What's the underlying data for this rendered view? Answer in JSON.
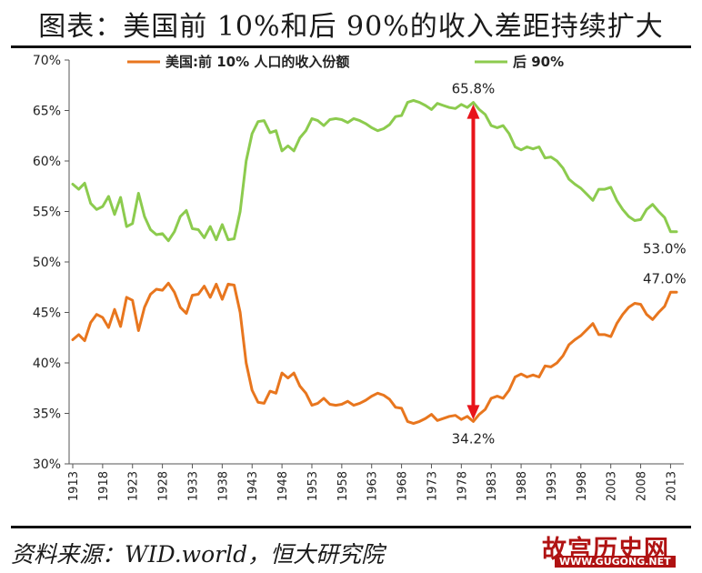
{
  "title": "图表：美国前 10%和后 90%的收入差距持续扩大",
  "source": "资料来源：WID.world，恒大研究院",
  "watermark": {
    "main": "故宫历史网",
    "url": "WWW.GUGONG.NET"
  },
  "colors": {
    "top10": "#E8761E",
    "bottom90": "#8CCB4E",
    "arrow": "#E8141B"
  },
  "chart_data": {
    "type": "line",
    "ylim": [
      30,
      70
    ],
    "xlim": [
      1913,
      2014
    ],
    "yticks": [
      "30%",
      "35%",
      "40%",
      "45%",
      "50%",
      "55%",
      "60%",
      "65%",
      "70%"
    ],
    "xticks": [
      "1913",
      "1918",
      "1923",
      "1928",
      "1933",
      "1938",
      "1943",
      "1948",
      "1953",
      "1958",
      "1963",
      "1968",
      "1973",
      "1978",
      "1983",
      "1988",
      "1993",
      "1998",
      "2003",
      "2008",
      "2013"
    ],
    "grid": false,
    "legend": "top",
    "series": [
      {
        "name": "美国:前 10% 人口的收入份额",
        "x": [
          1913,
          1914,
          1915,
          1916,
          1917,
          1918,
          1919,
          1920,
          1921,
          1922,
          1923,
          1924,
          1925,
          1926,
          1927,
          1928,
          1929,
          1930,
          1931,
          1932,
          1933,
          1934,
          1935,
          1936,
          1937,
          1938,
          1939,
          1940,
          1941,
          1942,
          1943,
          1944,
          1945,
          1946,
          1947,
          1948,
          1949,
          1950,
          1951,
          1952,
          1953,
          1954,
          1955,
          1956,
          1957,
          1958,
          1959,
          1960,
          1961,
          1962,
          1963,
          1964,
          1965,
          1966,
          1967,
          1968,
          1969,
          1970,
          1971,
          1972,
          1973,
          1974,
          1975,
          1976,
          1977,
          1978,
          1979,
          1980,
          1981,
          1982,
          1983,
          1984,
          1985,
          1986,
          1987,
          1988,
          1989,
          1990,
          1991,
          1992,
          1993,
          1994,
          1995,
          1996,
          1997,
          1998,
          1999,
          2000,
          2001,
          2002,
          2003,
          2004,
          2005,
          2006,
          2007,
          2008,
          2009,
          2010,
          2011,
          2012,
          2013,
          2014
        ],
        "values": [
          42.3,
          42.8,
          42.2,
          44.0,
          44.8,
          44.5,
          43.5,
          45.3,
          43.6,
          46.5,
          46.2,
          43.2,
          45.5,
          46.8,
          47.3,
          47.2,
          47.9,
          47.0,
          45.5,
          44.9,
          46.7,
          46.8,
          47.6,
          46.5,
          47.8,
          46.3,
          47.8,
          47.7,
          45.0,
          40.0,
          37.3,
          36.1,
          36.0,
          37.2,
          37.0,
          39.0,
          38.5,
          39.0,
          37.7,
          37.0,
          35.8,
          36.0,
          36.5,
          35.9,
          35.8,
          35.9,
          36.2,
          35.8,
          36.0,
          36.3,
          36.7,
          37.0,
          36.8,
          36.4,
          35.6,
          35.5,
          34.2,
          34.0,
          34.2,
          34.5,
          34.9,
          34.3,
          34.5,
          34.7,
          34.8,
          34.4,
          34.7,
          34.2,
          34.9,
          35.4,
          36.5,
          36.7,
          36.5,
          37.3,
          38.6,
          38.9,
          38.6,
          38.8,
          38.6,
          39.7,
          39.6,
          40.0,
          40.7,
          41.8,
          42.3,
          42.7,
          43.3,
          43.9,
          42.8,
          42.8,
          42.6,
          43.9,
          44.8,
          45.5,
          45.9,
          45.8,
          44.8,
          44.3,
          45.0,
          45.6,
          47.0,
          47.0
        ]
      },
      {
        "name": "后 90%",
        "x": [
          1913,
          1914,
          1915,
          1916,
          1917,
          1918,
          1919,
          1920,
          1921,
          1922,
          1923,
          1924,
          1925,
          1926,
          1927,
          1928,
          1929,
          1930,
          1931,
          1932,
          1933,
          1934,
          1935,
          1936,
          1937,
          1938,
          1939,
          1940,
          1941,
          1942,
          1943,
          1944,
          1945,
          1946,
          1947,
          1948,
          1949,
          1950,
          1951,
          1952,
          1953,
          1954,
          1955,
          1956,
          1957,
          1958,
          1959,
          1960,
          1961,
          1962,
          1963,
          1964,
          1965,
          1966,
          1967,
          1968,
          1969,
          1970,
          1971,
          1972,
          1973,
          1974,
          1975,
          1976,
          1977,
          1978,
          1979,
          1980,
          1981,
          1982,
          1983,
          1984,
          1985,
          1986,
          1987,
          1988,
          1989,
          1990,
          1991,
          1992,
          1993,
          1994,
          1995,
          1996,
          1997,
          1998,
          1999,
          2000,
          2001,
          2002,
          2003,
          2004,
          2005,
          2006,
          2007,
          2008,
          2009,
          2010,
          2011,
          2012,
          2013,
          2014
        ],
        "values": [
          57.7,
          57.2,
          57.8,
          55.8,
          55.2,
          55.5,
          56.5,
          54.7,
          56.4,
          53.5,
          53.8,
          56.8,
          54.5,
          53.2,
          52.7,
          52.8,
          52.1,
          53.0,
          54.5,
          55.1,
          53.3,
          53.2,
          52.4,
          53.5,
          52.2,
          53.7,
          52.2,
          52.3,
          55.0,
          60.0,
          62.7,
          63.9,
          64.0,
          62.8,
          63.0,
          61.0,
          61.5,
          61.0,
          62.3,
          63.0,
          64.2,
          64.0,
          63.5,
          64.1,
          64.2,
          64.1,
          63.8,
          64.2,
          64.0,
          63.7,
          63.3,
          63.0,
          63.2,
          63.6,
          64.4,
          64.5,
          65.8,
          66.0,
          65.8,
          65.5,
          65.1,
          65.7,
          65.5,
          65.3,
          65.2,
          65.6,
          65.3,
          65.8,
          65.1,
          64.6,
          63.5,
          63.3,
          63.5,
          62.7,
          61.4,
          61.1,
          61.4,
          61.2,
          61.4,
          60.3,
          60.4,
          60.0,
          59.3,
          58.2,
          57.7,
          57.3,
          56.7,
          56.1,
          57.2,
          57.2,
          57.4,
          56.1,
          55.2,
          54.5,
          54.1,
          54.2,
          55.2,
          55.7,
          55.0,
          54.4,
          53.0,
          53.0
        ]
      }
    ],
    "annotations": [
      {
        "text": "65.8%",
        "x": 1980,
        "y": 65.8,
        "pos": "above"
      },
      {
        "text": "34.2%",
        "x": 1980,
        "y": 34.2,
        "pos": "below"
      },
      {
        "text": "47.0%",
        "x": 2012,
        "y": 47.0,
        "pos": "above"
      },
      {
        "text": "53.0%",
        "x": 2012,
        "y": 53.0,
        "pos": "below"
      }
    ],
    "arrow": {
      "x": 1980,
      "from": 34.2,
      "to": 65.8
    }
  }
}
